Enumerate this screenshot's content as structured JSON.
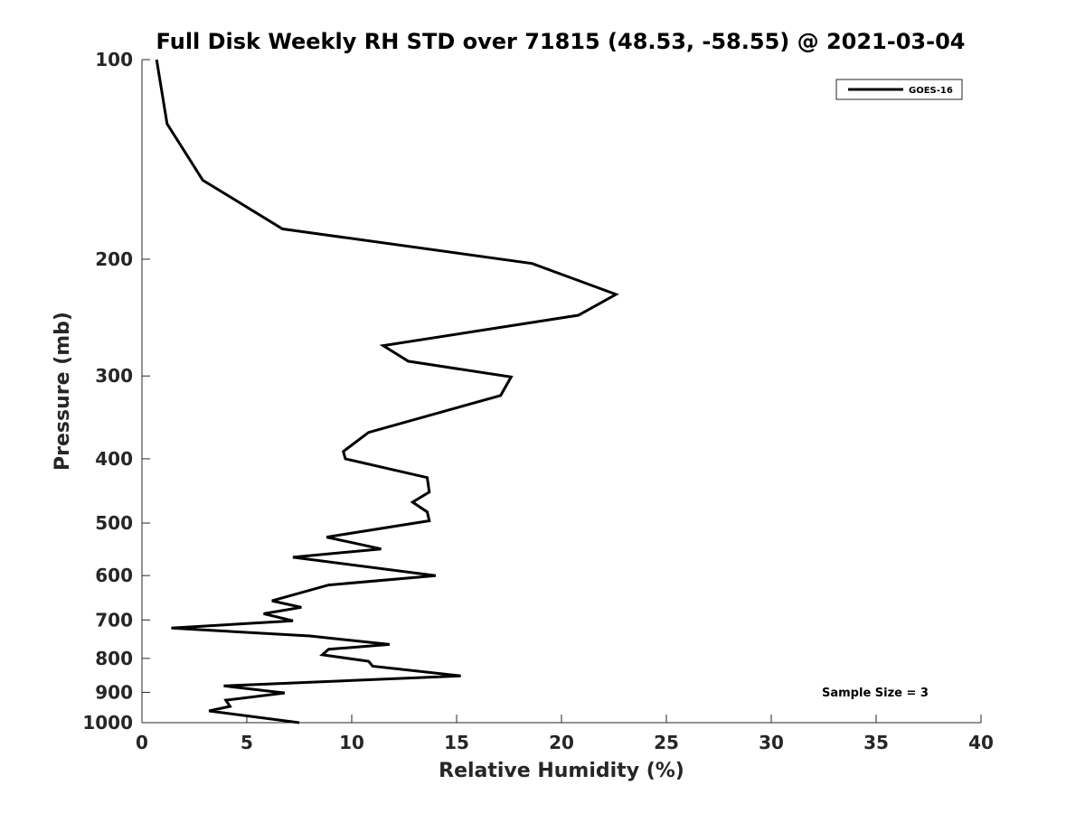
{
  "chart_data": {
    "type": "line",
    "title": "Full Disk Weekly RH STD over 71815 (48.53, -58.55) @ 2021-03-04",
    "xlabel": "Relative Humidity (%)",
    "ylabel": "Pressure (mb)",
    "xlim": [
      0,
      40
    ],
    "ylim": [
      100,
      1000
    ],
    "yscale": "log",
    "yreversed": true,
    "grid": false,
    "legend_position": "top-right",
    "x_ticks": [
      "0",
      "5",
      "10",
      "15",
      "20",
      "25",
      "30",
      "35",
      "40"
    ],
    "y_ticks": [
      "100",
      "200",
      "300",
      "400",
      "500",
      "600",
      "700",
      "800",
      "900",
      "1000"
    ],
    "series": [
      {
        "name": "GOES-16",
        "color": "#000000",
        "points": [
          [
            0.7,
            100
          ],
          [
            1.2,
            125
          ],
          [
            2.9,
            152
          ],
          [
            6.7,
            180
          ],
          [
            18.6,
            203
          ],
          [
            22.6,
            226
          ],
          [
            20.8,
            243
          ],
          [
            11.5,
            270
          ],
          [
            12.7,
            285
          ],
          [
            17.6,
            301
          ],
          [
            17.1,
            321
          ],
          [
            10.8,
            365
          ],
          [
            9.6,
            390
          ],
          [
            9.7,
            400
          ],
          [
            13.6,
            427
          ],
          [
            13.7,
            449
          ],
          [
            12.9,
            465
          ],
          [
            13.6,
            481
          ],
          [
            13.7,
            496
          ],
          [
            8.8,
            525
          ],
          [
            11.4,
            547
          ],
          [
            7.2,
            563
          ],
          [
            14.0,
            600
          ],
          [
            8.9,
            620
          ],
          [
            6.2,
            655
          ],
          [
            7.6,
            670
          ],
          [
            5.8,
            685
          ],
          [
            7.2,
            702
          ],
          [
            1.4,
            720
          ],
          [
            8.0,
            740
          ],
          [
            11.8,
            762
          ],
          [
            8.9,
            775
          ],
          [
            8.6,
            790
          ],
          [
            10.8,
            808
          ],
          [
            11.0,
            822
          ],
          [
            15.2,
            850
          ],
          [
            3.9,
            880
          ],
          [
            6.8,
            902
          ],
          [
            4.0,
            925
          ],
          [
            4.2,
            945
          ],
          [
            3.2,
            960
          ],
          [
            7.5,
            1000
          ]
        ]
      }
    ],
    "annotations": [
      {
        "text": "Sample Size = 3",
        "x": 35,
        "y": 900
      }
    ]
  }
}
